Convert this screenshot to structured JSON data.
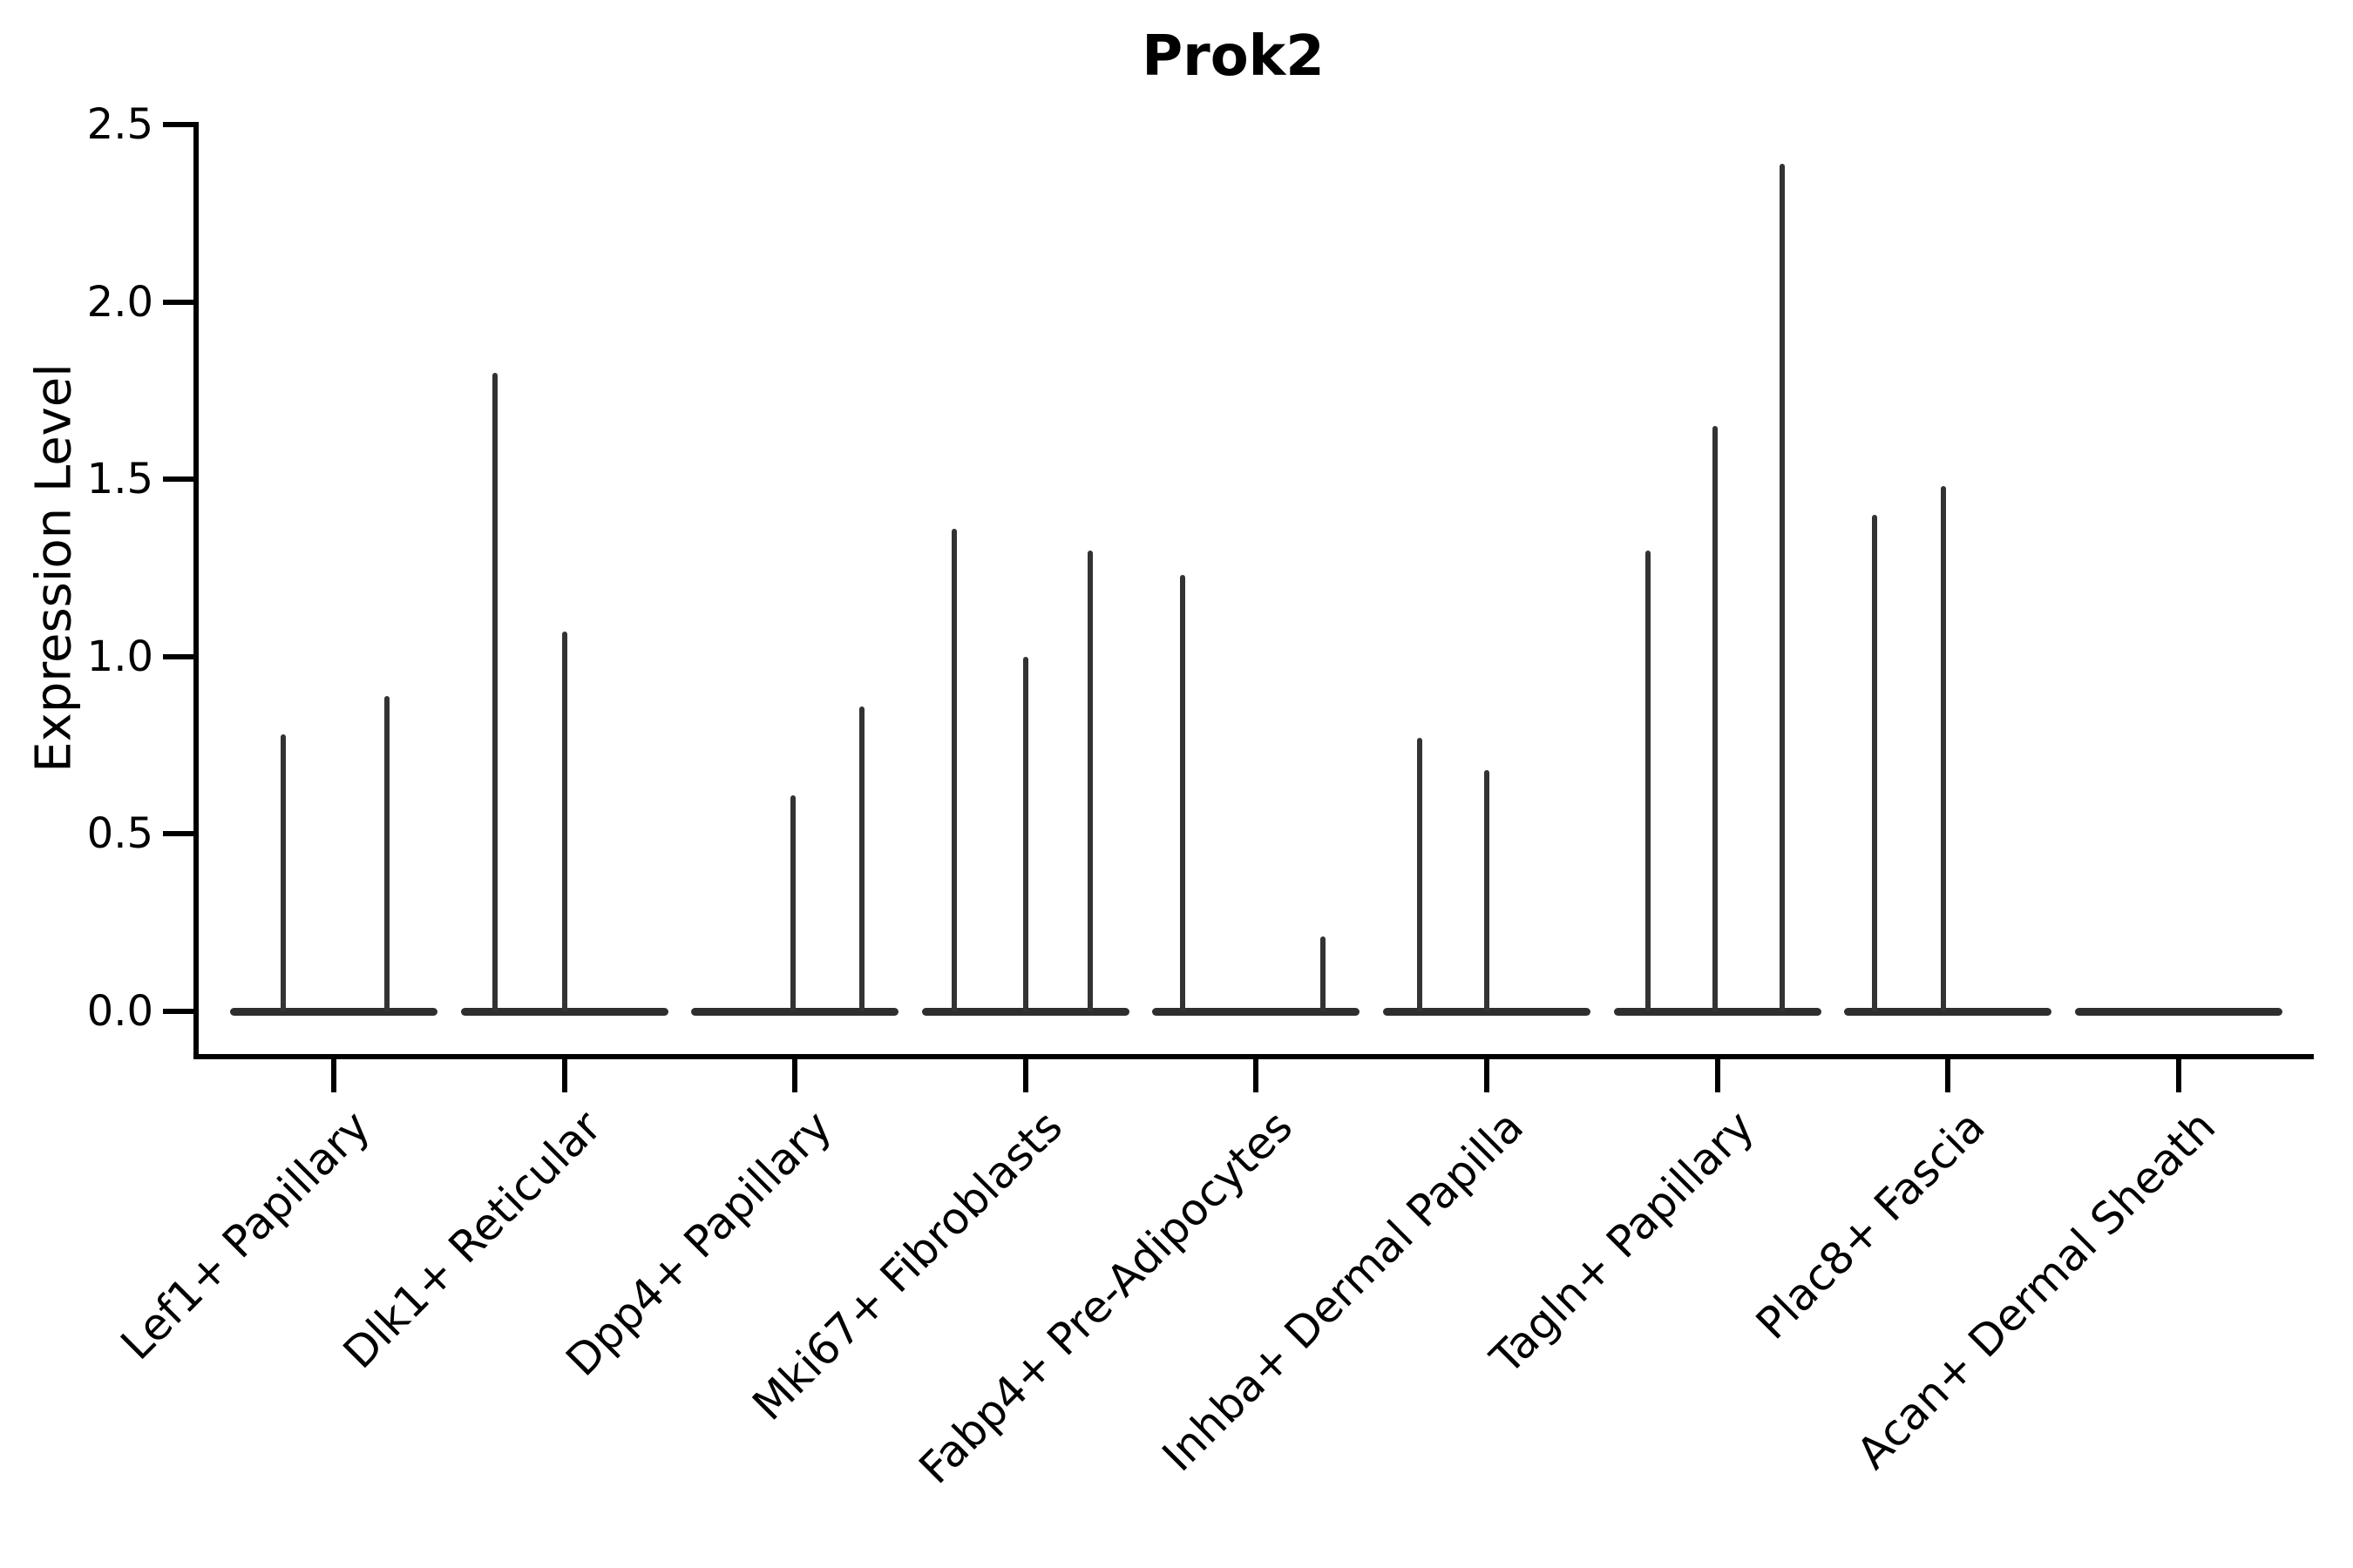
{
  "title": "Prok2",
  "ylabel": "Expression Level",
  "colors": {
    "axis": "#000000",
    "text": "#000000",
    "spike": "#333333",
    "baseline": "#2e2e2e"
  },
  "chart_data": {
    "type": "violin",
    "title": "Prok2",
    "xlabel": "",
    "ylabel": "Expression Level",
    "ylim": [
      0,
      2.5
    ],
    "yticks": [
      0.0,
      0.5,
      1.0,
      1.5,
      2.0,
      2.5
    ],
    "ytick_labels": [
      "0.0",
      "0.5",
      "1.0",
      "1.5",
      "2.0",
      "2.5"
    ],
    "grid": false,
    "legend": "none",
    "categories": [
      "Lef1+ Papillary",
      "Dlk1+ Reticular",
      "Dpp4+ Papillary",
      "Mki67+ Fibroblasts",
      "Fabp4+ Pre-Adipocytes",
      "Inhba+ Dermal Papilla",
      "Tagln+ Papillary",
      "Plac8+ Fascia",
      "Acan+ Dermal Sheath"
    ],
    "violin_body_halfwidth": 0.45,
    "violins": [
      {
        "category": "Lef1+ Papillary",
        "baseline_value": 0,
        "spikes": [
          {
            "offset": -0.22,
            "value": 0.78
          },
          {
            "offset": 0.23,
            "value": 0.89
          }
        ]
      },
      {
        "category": "Dlk1+ Reticular",
        "baseline_value": 0,
        "spikes": [
          {
            "offset": -0.3,
            "value": 1.8
          },
          {
            "offset": 0.0,
            "value": 1.07
          }
        ]
      },
      {
        "category": "Dpp4+ Papillary",
        "baseline_value": 0,
        "spikes": [
          {
            "offset": -0.01,
            "value": 0.61
          },
          {
            "offset": 0.29,
            "value": 0.86
          }
        ]
      },
      {
        "category": "Mki67+ Fibroblasts",
        "baseline_value": 0,
        "spikes": [
          {
            "offset": -0.31,
            "value": 1.36
          },
          {
            "offset": 0.0,
            "value": 1.0
          },
          {
            "offset": 0.28,
            "value": 1.3
          }
        ]
      },
      {
        "category": "Fabp4+ Pre-Adipocytes",
        "baseline_value": 0,
        "spikes": [
          {
            "offset": -0.32,
            "value": 1.23
          },
          {
            "offset": 0.29,
            "value": 0.21
          }
        ]
      },
      {
        "category": "Inhba+ Dermal Papilla",
        "baseline_value": 0,
        "spikes": [
          {
            "offset": -0.29,
            "value": 0.77
          },
          {
            "offset": 0.0,
            "value": 0.68
          }
        ]
      },
      {
        "category": "Tagln+ Papillary",
        "baseline_value": 0,
        "spikes": [
          {
            "offset": -0.3,
            "value": 1.3
          },
          {
            "offset": -0.01,
            "value": 1.65
          },
          {
            "offset": 0.28,
            "value": 2.39
          }
        ]
      },
      {
        "category": "Plac8+ Fascia",
        "baseline_value": 0,
        "spikes": [
          {
            "offset": -0.32,
            "value": 1.4
          },
          {
            "offset": -0.02,
            "value": 1.48
          }
        ]
      },
      {
        "category": "Acan+ Dermal Sheath",
        "baseline_value": 0,
        "spikes": []
      }
    ]
  }
}
